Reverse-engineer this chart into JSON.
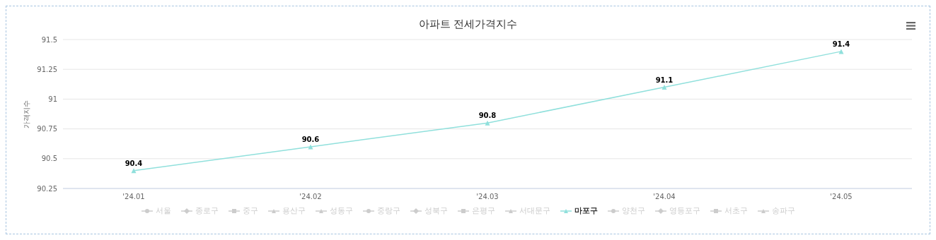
{
  "chart_data": {
    "type": "line",
    "title": "아파트 전세가격지수",
    "ylabel": "가격지수",
    "categories": [
      "'24.01",
      "'24.02",
      "'24.03",
      "'24.04",
      "'24.05"
    ],
    "series": [
      {
        "name": "서울",
        "color": "#cccccc",
        "marker": "circle",
        "values": [
          null,
          null,
          null,
          null,
          null
        ]
      },
      {
        "name": "종로구",
        "color": "#cccccc",
        "marker": "diamond",
        "values": [
          null,
          null,
          null,
          null,
          null
        ]
      },
      {
        "name": "중구",
        "color": "#cccccc",
        "marker": "square",
        "values": [
          null,
          null,
          null,
          null,
          null
        ]
      },
      {
        "name": "용산구",
        "color": "#cccccc",
        "marker": "triangle",
        "values": [
          null,
          null,
          null,
          null,
          null
        ]
      },
      {
        "name": "성동구",
        "color": "#cccccc",
        "marker": "triangle",
        "values": [
          null,
          null,
          null,
          null,
          null
        ]
      },
      {
        "name": "중랑구",
        "color": "#cccccc",
        "marker": "circle",
        "values": [
          null,
          null,
          null,
          null,
          null
        ]
      },
      {
        "name": "성북구",
        "color": "#cccccc",
        "marker": "diamond",
        "values": [
          null,
          null,
          null,
          null,
          null
        ]
      },
      {
        "name": "은평구",
        "color": "#cccccc",
        "marker": "square",
        "values": [
          null,
          null,
          null,
          null,
          null
        ]
      },
      {
        "name": "서대문구",
        "color": "#cccccc",
        "marker": "triangle",
        "values": [
          null,
          null,
          null,
          null,
          null
        ]
      },
      {
        "name": "마포구",
        "color": "#90e0dc",
        "marker": "triangle",
        "values": [
          90.4,
          90.6,
          90.8,
          91.1,
          91.4
        ]
      },
      {
        "name": "양천구",
        "color": "#cccccc",
        "marker": "circle",
        "values": [
          null,
          null,
          null,
          null,
          null
        ]
      },
      {
        "name": "영등포구",
        "color": "#cccccc",
        "marker": "diamond",
        "values": [
          null,
          null,
          null,
          null,
          null
        ]
      },
      {
        "name": "서초구",
        "color": "#cccccc",
        "marker": "square",
        "values": [
          null,
          null,
          null,
          null,
          null
        ]
      },
      {
        "name": "송파구",
        "color": "#cccccc",
        "marker": "triangle",
        "values": [
          null,
          null,
          null,
          null,
          null
        ]
      }
    ],
    "ylim": [
      90.25,
      91.5
    ],
    "yticks": [
      90.25,
      90.5,
      90.75,
      91,
      91.25,
      91.5
    ],
    "grid": "y",
    "legend": "bottom",
    "data_labels": true
  }
}
